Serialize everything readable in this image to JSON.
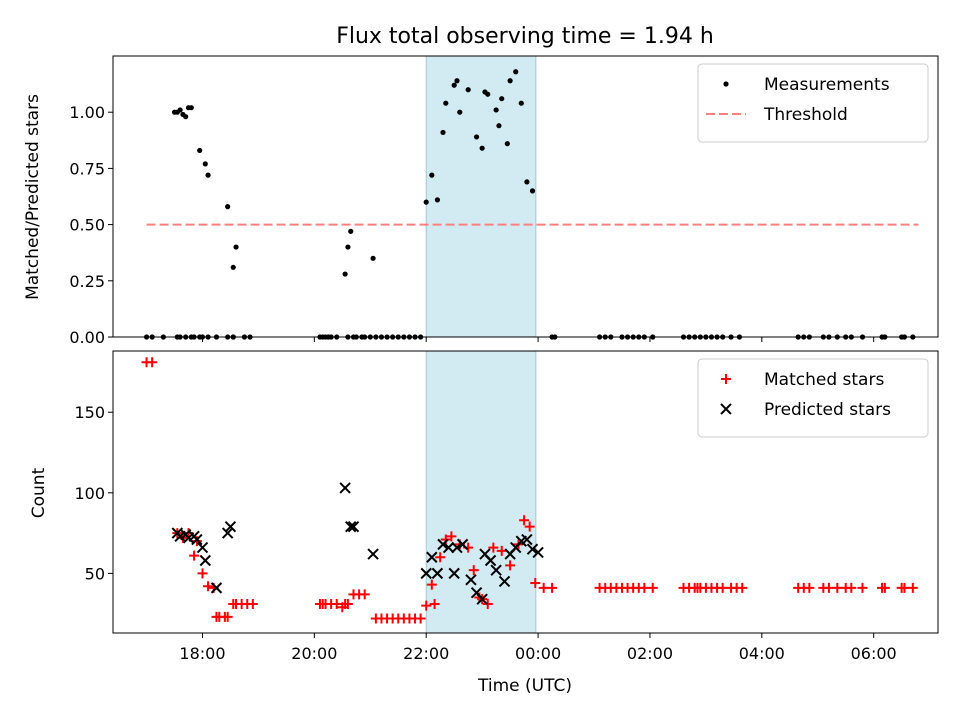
{
  "title": "Flux total observing time = 1.94 h",
  "shared_xaxis": {
    "label": "Time (UTC)",
    "range_hours": [
      16.4,
      31.15
    ],
    "ticks": [
      18,
      20,
      22,
      24,
      26,
      28,
      30
    ],
    "tick_labels": [
      "18:00",
      "20:00",
      "22:00",
      "00:00",
      "02:00",
      "04:00",
      "06:00"
    ],
    "highlight_band_hours": [
      22.0,
      23.96
    ],
    "highlight_color": "#add8e6"
  },
  "chart_data": [
    {
      "type": "scatter",
      "panel": "top",
      "ylabel": "Matched/Predicted stars",
      "ylim": [
        0,
        1.25
      ],
      "yticks": [
        0.0,
        0.25,
        0.5,
        0.75,
        1.0
      ],
      "ytick_labels": [
        "0.00",
        "0.25",
        "0.50",
        "0.75",
        "1.00"
      ],
      "grid": false,
      "legend": {
        "placement": "top-right",
        "entries": [
          {
            "label": "Measurements",
            "color": "#000000",
            "marker": "dot"
          },
          {
            "label": "Threshold",
            "color": "#ff7f7f",
            "marker": "dashed-line"
          }
        ]
      },
      "threshold": {
        "name": "Threshold",
        "y": 0.5,
        "x_range": [
          17.0,
          30.8
        ],
        "color": "#ff7f7f"
      },
      "series": [
        {
          "name": "Measurements",
          "color": "#000000",
          "x": [
            17.0,
            17.1,
            17.55,
            17.6,
            17.7,
            17.8,
            17.85,
            17.95,
            18.0,
            18.1,
            18.25,
            18.45,
            18.55,
            18.75,
            18.85,
            17.3,
            17.5,
            17.65,
            17.75,
            18.45,
            18.55,
            18.55,
            18.6,
            20.1,
            20.15,
            20.2,
            20.25,
            20.3,
            20.4,
            20.6,
            20.7,
            20.75,
            20.85,
            20.9,
            21.0,
            21.1,
            20.55,
            20.6,
            20.65,
            21.05,
            21.2,
            21.3,
            21.4,
            21.5,
            21.6,
            21.7,
            21.8,
            21.9,
            22.0,
            22.1,
            22.2,
            22.3,
            22.35,
            22.5,
            22.55,
            22.6,
            22.75,
            22.9,
            23.0,
            23.05,
            23.1,
            23.25,
            23.3,
            23.35,
            23.45,
            23.5,
            23.6,
            23.7,
            23.8,
            23.9,
            24.25,
            24.3,
            25.1,
            25.2,
            25.3,
            25.5,
            25.6,
            25.7,
            25.8,
            25.9,
            26.05,
            26.6,
            26.7,
            26.8,
            26.9,
            27.0,
            27.1,
            27.2,
            27.3,
            27.45,
            27.6,
            28.65,
            28.75,
            28.85,
            29.1,
            29.2,
            29.35,
            29.5,
            29.6,
            29.8,
            30.15,
            30.2,
            30.5,
            30.55,
            30.7
          ],
          "y": [
            0.0,
            0.0,
            0.0,
            0.0,
            0.0,
            0.0,
            0.0,
            0.0,
            0.0,
            0.0,
            0.0,
            0.0,
            0.0,
            0.0,
            0.0,
            0.0,
            1.0,
            0.99,
            1.02,
            0.58,
            0.31,
            0.0,
            0.4,
            0.0,
            0.0,
            0.0,
            0.0,
            0.0,
            0.0,
            0.0,
            0.0,
            0.0,
            0.0,
            0.0,
            0.0,
            0.0,
            0.28,
            0.4,
            0.47,
            0.35,
            0.0,
            0.0,
            0.0,
            0.0,
            0.0,
            0.0,
            0.0,
            0.0,
            0.6,
            0.72,
            0.61,
            0.91,
            1.04,
            1.12,
            1.14,
            1.0,
            1.1,
            0.89,
            0.84,
            1.09,
            1.08,
            1.01,
            0.94,
            1.06,
            0.86,
            1.14,
            1.18,
            1.04,
            0.69,
            0.65,
            0.0,
            0.0,
            0.0,
            0.0,
            0.0,
            0.0,
            0.0,
            0.0,
            0.0,
            0.0,
            0.0,
            0.0,
            0.0,
            0.0,
            0.0,
            0.0,
            0.0,
            0.0,
            0.0,
            0.0,
            0.0,
            0.0,
            0.0,
            0.0,
            0.0,
            0.0,
            0.0,
            0.0,
            0.0,
            0.0,
            0.0,
            0.0,
            0.0,
            0.0,
            0.0
          ]
        },
        {
          "name": "Measurements",
          "color": "#000000",
          "x": [
            17.55,
            17.6,
            17.7,
            17.8,
            17.95,
            18.05,
            18.1
          ],
          "y": [
            1.0,
            1.01,
            0.98,
            1.02,
            0.83,
            0.77,
            0.72
          ]
        }
      ]
    },
    {
      "type": "scatter",
      "panel": "bottom",
      "ylabel": "Count",
      "ylim": [
        13,
        188
      ],
      "yticks": [
        50,
        100,
        150
      ],
      "ytick_labels": [
        "50",
        "100",
        "150"
      ],
      "grid": false,
      "legend": {
        "placement": "top-right",
        "entries": [
          {
            "label": "Matched stars",
            "color": "#ff0000",
            "marker": "plus"
          },
          {
            "label": "Predicted stars",
            "color": "#000000",
            "marker": "x"
          }
        ]
      },
      "series": [
        {
          "name": "Matched stars",
          "color": "#ff0000",
          "marker": "plus",
          "x": [
            17.0,
            17.1,
            17.55,
            17.65,
            17.75,
            17.85,
            17.9,
            18.0,
            18.1,
            18.2,
            18.25,
            18.3,
            18.4,
            18.45,
            18.55,
            18.6,
            18.7,
            18.8,
            18.9,
            20.1,
            20.15,
            20.2,
            20.3,
            20.4,
            20.5,
            20.55,
            20.6,
            20.7,
            20.8,
            20.9,
            21.1,
            21.2,
            21.3,
            21.4,
            21.5,
            21.6,
            21.7,
            21.8,
            21.9,
            22.0,
            22.1,
            22.15,
            22.25,
            22.35,
            22.45,
            22.6,
            22.75,
            22.85,
            22.95,
            23.0,
            23.1,
            23.2,
            23.35,
            23.5,
            23.65,
            23.75,
            23.85,
            23.95,
            24.1,
            24.25,
            25.1,
            25.2,
            25.3,
            25.4,
            25.5,
            25.6,
            25.7,
            25.8,
            25.9,
            26.05,
            26.6,
            26.7,
            26.8,
            26.85,
            26.9,
            27.0,
            27.1,
            27.2,
            27.3,
            27.45,
            27.55,
            27.65,
            28.65,
            28.75,
            28.85,
            29.1,
            29.2,
            29.35,
            29.5,
            29.6,
            29.8,
            30.15,
            30.2,
            30.5,
            30.55,
            30.7
          ],
          "y": [
            181,
            181,
            75,
            72,
            75,
            61,
            70,
            50,
            42,
            41,
            23,
            23,
            23,
            23,
            31,
            31,
            31,
            31,
            31,
            31,
            31,
            31,
            31,
            31,
            29,
            31,
            31,
            37,
            37,
            37,
            22,
            22,
            22,
            22,
            22,
            22,
            22,
            22,
            22,
            30,
            43,
            31,
            60,
            71,
            73,
            68,
            66,
            52,
            35,
            34,
            31,
            66,
            64,
            55,
            68,
            83,
            79,
            44,
            41,
            41,
            41,
            41,
            41,
            41,
            41,
            41,
            41,
            41,
            41,
            41,
            41,
            41,
            41,
            41,
            41,
            41,
            41,
            41,
            41,
            41,
            41,
            41,
            41,
            41,
            41,
            41,
            41,
            41,
            41,
            41,
            41,
            41,
            41,
            41,
            41,
            41
          ]
        },
        {
          "name": "Predicted stars",
          "color": "#000000",
          "marker": "x",
          "x": [
            17.55,
            17.6,
            17.7,
            17.75,
            17.85,
            17.9,
            18.0,
            18.05,
            18.25,
            18.45,
            18.5,
            20.55,
            20.65,
            20.7,
            21.05,
            22.0,
            22.1,
            22.2,
            22.3,
            22.4,
            22.5,
            22.55,
            22.65,
            22.8,
            22.9,
            23.0,
            23.05,
            23.15,
            23.25,
            23.4,
            23.5,
            23.6,
            23.7,
            23.8,
            23.9,
            24.0
          ],
          "y": [
            75,
            73,
            74,
            72,
            73,
            71,
            66,
            58,
            41,
            75,
            79,
            103,
            79,
            79,
            62,
            50,
            60,
            50,
            68,
            66,
            50,
            66,
            68,
            46,
            38,
            34,
            62,
            58,
            52,
            45,
            62,
            66,
            70,
            71,
            65,
            63
          ]
        }
      ]
    }
  ]
}
